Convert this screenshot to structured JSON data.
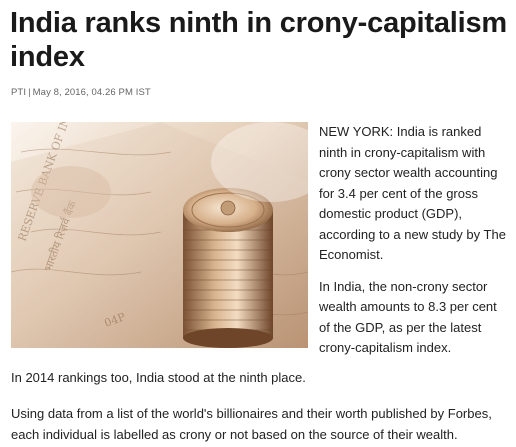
{
  "article": {
    "headline": "India ranks ninth in crony-capitalism index",
    "byline": {
      "source": "PTI",
      "separator": "|",
      "date": "May 8, 2016, 04.26 PM IST"
    },
    "image": {
      "icon": "coin-stack-photo"
    },
    "paragraphs": [
      "NEW YORK: India is ranked ninth in crony-capitalism with crony sector wealth accounting for 3.4 per cent of the gross domestic product (GDP), according to a new study by The Economist.",
      "In India, the non-crony sector wealth amounts to 8.3 per cent of the GDP, as per the latest crony-capitalism index.",
      "In 2014 rankings too, India stood at the ninth place.",
      "Using data from a list of the world's billionaires and their worth published by Forbes, each individual is labelled as crony or not based on the source of their wealth."
    ]
  },
  "colors": {
    "text": "#222222",
    "meta": "#666666",
    "photo_tone": "#b08a6a"
  }
}
